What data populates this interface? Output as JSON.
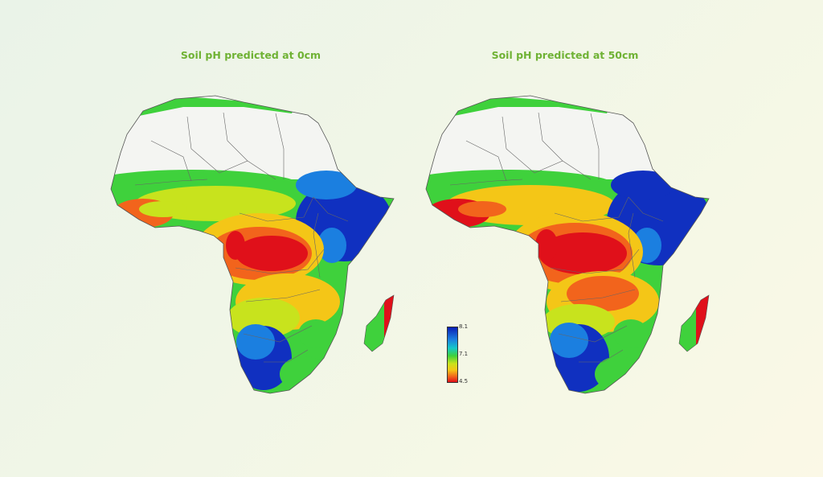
{
  "maps": [
    {
      "title": "Soil pH predicted at 0cm"
    },
    {
      "title": "Soil pH predicted at 50cm"
    }
  ],
  "legend": {
    "max": "8.1",
    "mid": "7.1",
    "min": "4.5"
  },
  "colors": {
    "title": "#6fb234",
    "high_ph": "#1030c0",
    "mid_ph": "#3fd13c",
    "low_ph": "#e0101a",
    "no_data": "#f4f5f2",
    "border": "#555555"
  }
}
